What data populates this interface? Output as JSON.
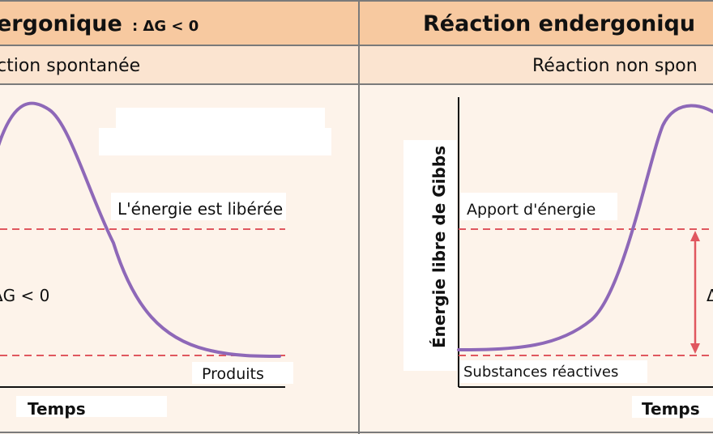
{
  "colors": {
    "header_bg": "#f7c9a0",
    "panel_bg": "#fdf3ea",
    "border": "#7a7a7a",
    "curve": "#8e68b8",
    "dashed": "#e0575f",
    "arrow": "#e0575f",
    "text": "#111111"
  },
  "left_panel": {
    "header": {
      "title": "ergonique",
      "formula": ": ΔG < 0"
    },
    "subtitle": "ction spontanée",
    "energy_label": "L'énergie est libérée",
    "delta_label": "ΔG < 0",
    "products_label": "Produits",
    "x_axis_label": "Temps"
  },
  "right_panel": {
    "header": {
      "title": "Réaction endergoniqu"
    },
    "subtitle": "Réaction non spon",
    "y_axis_label": "Énergie libre de Gibbs",
    "energy_label": "Apport d'énergie",
    "reactants_label": "Substances réactives",
    "delta_label": "Δ",
    "x_axis_label": "Temps"
  },
  "icons": [
    "double-headed-arrow-icon"
  ]
}
